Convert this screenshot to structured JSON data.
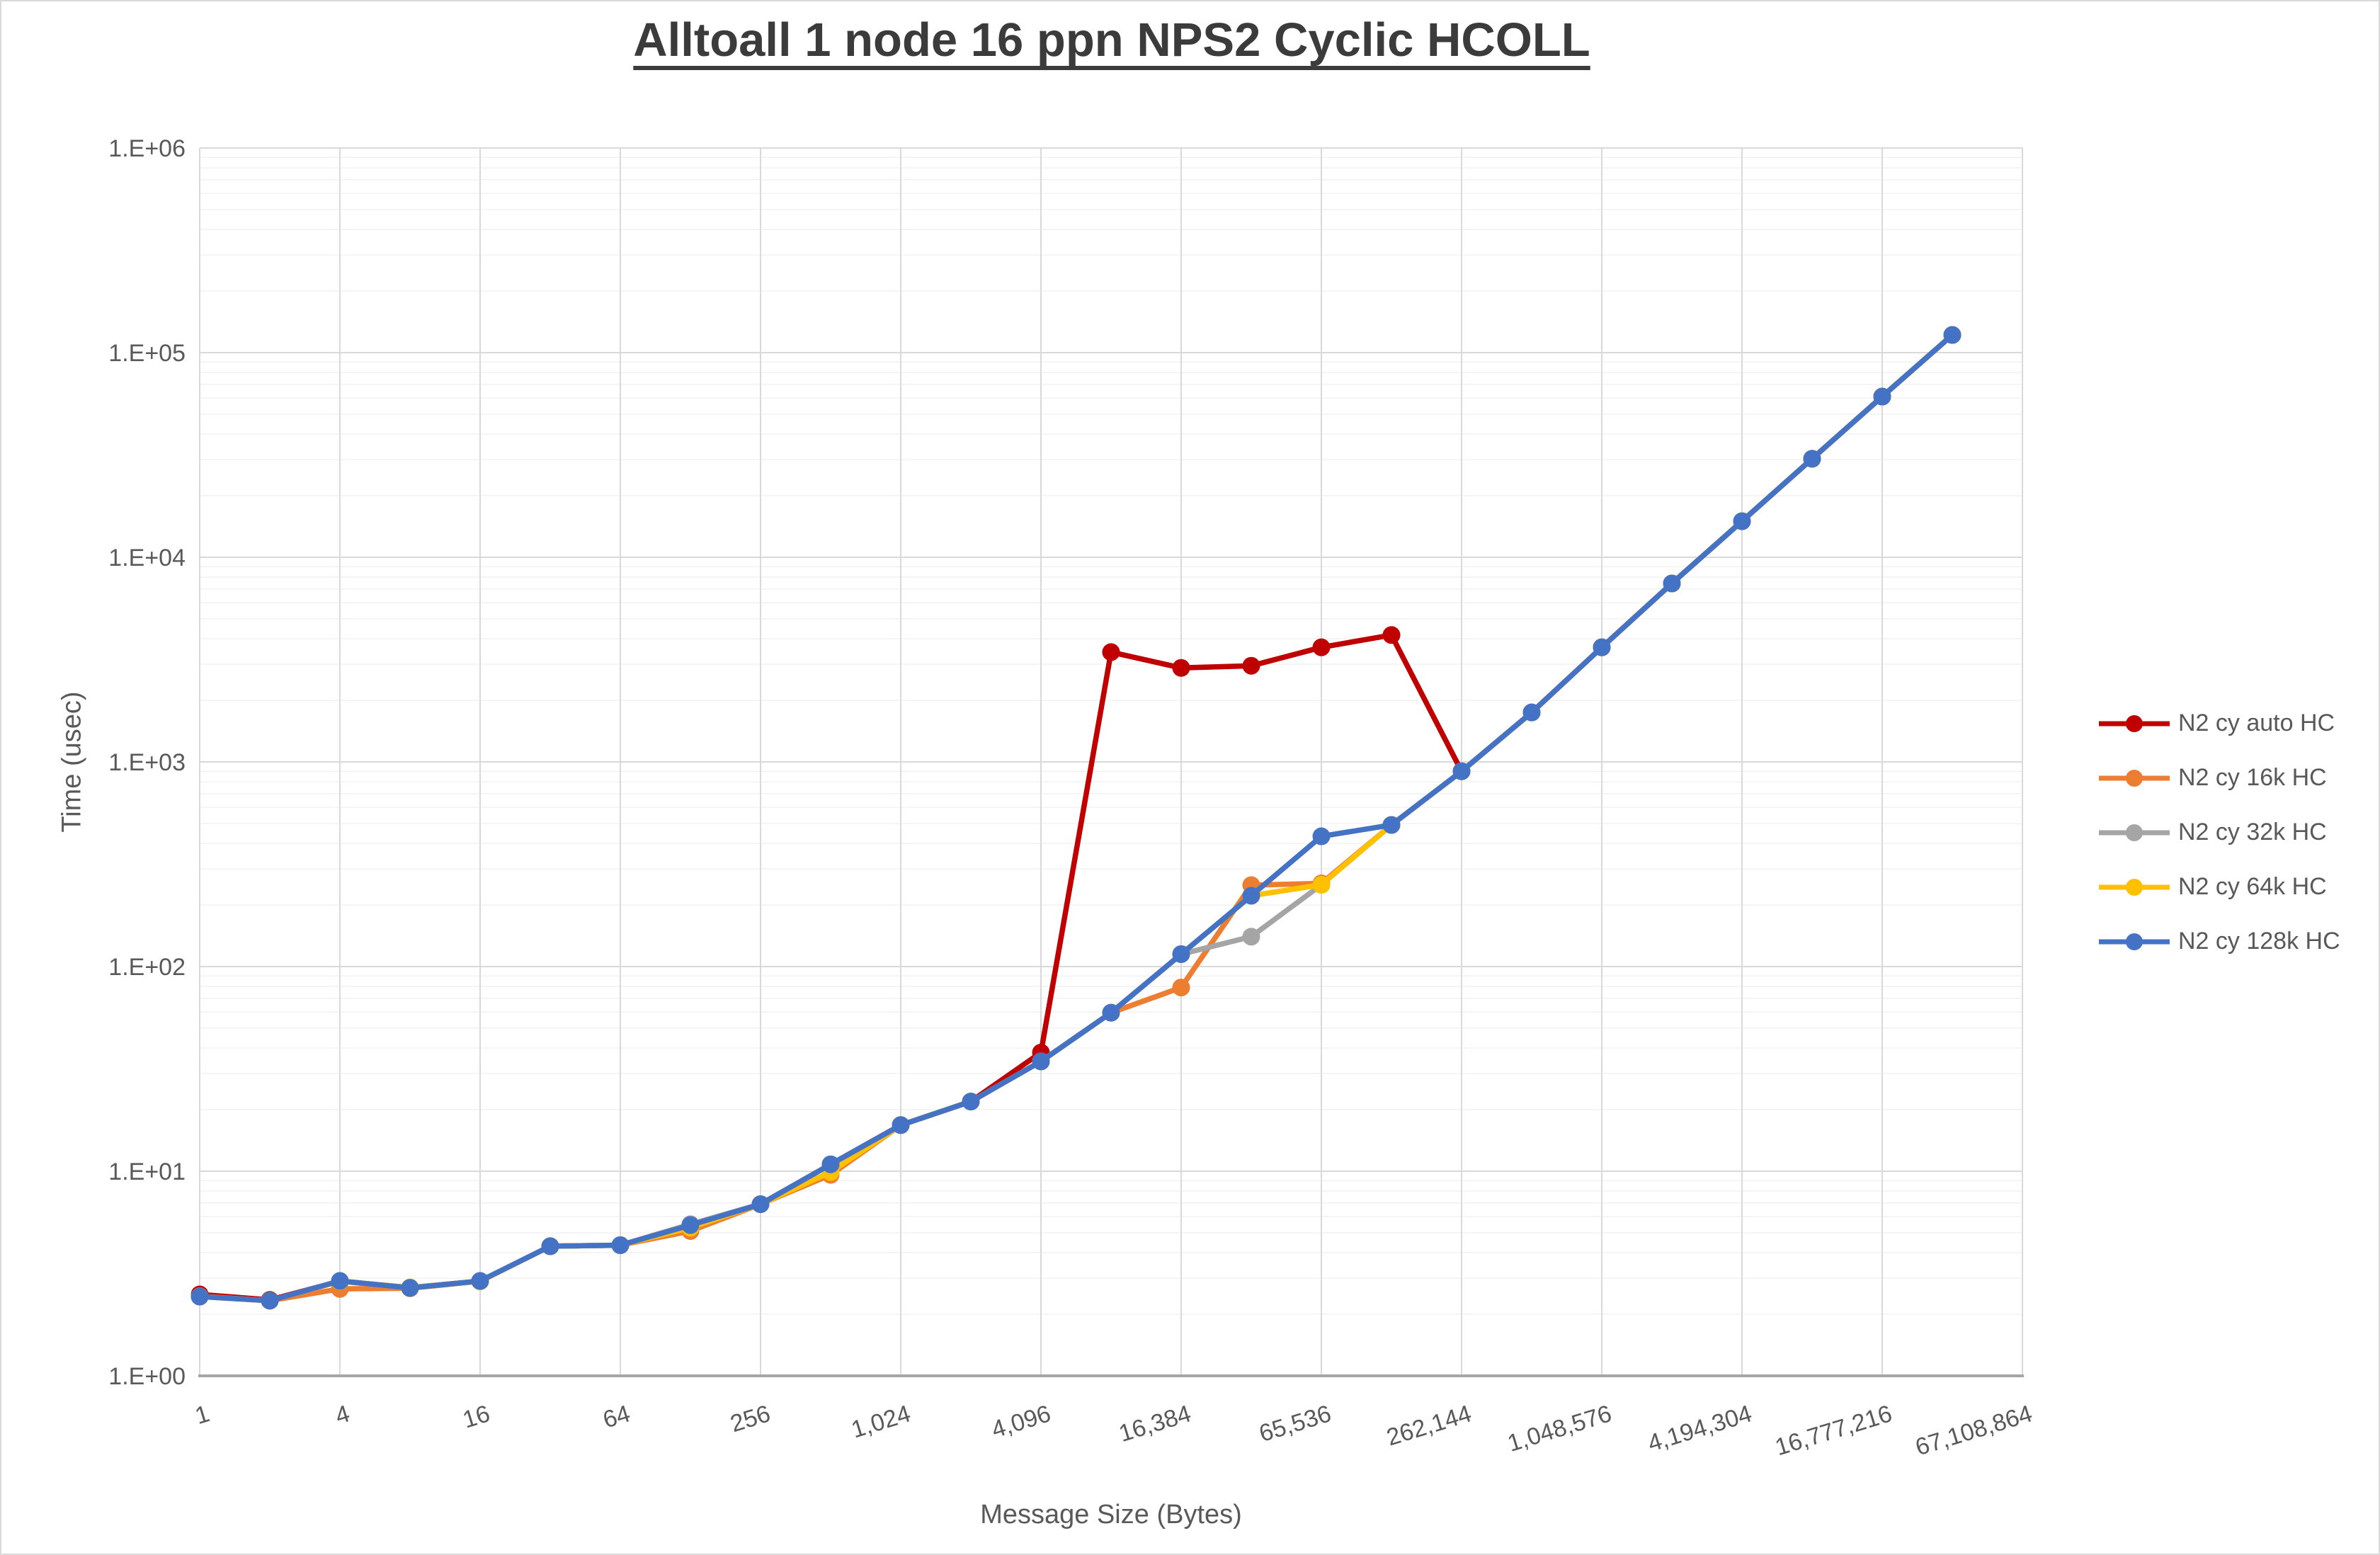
{
  "chart_data": {
    "type": "line",
    "title": "Alltoall 1 node 16 ppn NPS2 Cyclic HCOLL",
    "xlabel": "Message Size (Bytes)",
    "ylabel": "Time (usec)",
    "x_scale": "log2-categorical",
    "y_scale": "log10",
    "ylim": [
      1,
      1000000
    ],
    "grid": "x-major, y-major, y-minor",
    "legend_position": "right",
    "y_tick_labels": [
      "1.E+00",
      "1.E+01",
      "1.E+02",
      "1.E+03",
      "1.E+04",
      "1.E+05",
      "1.E+06"
    ],
    "x_tick_labels": [
      "1",
      "4",
      "16",
      "64",
      "256",
      "1,024",
      "4,096",
      "16,384",
      "65,536",
      "262,144",
      "1,048,576",
      "4,194,304",
      "16,777,216",
      "67,108,864"
    ],
    "categories": [
      1,
      2,
      4,
      8,
      16,
      32,
      64,
      128,
      256,
      512,
      1024,
      2048,
      4096,
      8192,
      16384,
      32768,
      65536,
      131072,
      262144,
      524288,
      1048576,
      2097152,
      4194304,
      8388608,
      16777216,
      33554432
    ],
    "series": [
      {
        "name": "N2 cy auto HC",
        "color": "#C00000",
        "values": [
          2.5,
          2.35,
          2.9,
          2.7,
          2.9,
          4.3,
          4.35,
          5.5,
          6.9,
          10.8,
          16.8,
          21.9,
          38,
          3440,
          2880,
          2950,
          3630,
          4170,
          900,
          1745,
          3630,
          7450,
          15000,
          30300,
          61000,
          122000
        ]
      },
      {
        "name": "N2 cy 16k HC",
        "color": "#ED7D31",
        "values": [
          2.45,
          2.33,
          2.66,
          2.68,
          2.9,
          4.3,
          4.35,
          5.1,
          6.9,
          9.6,
          16.8,
          21.9,
          34.4,
          59.5,
          79,
          250,
          255,
          492,
          900,
          1745,
          3630,
          7450,
          15000,
          30300,
          61000,
          122000
        ]
      },
      {
        "name": "N2 cy 32k HC",
        "color": "#A5A5A5",
        "values": [
          2.44,
          2.33,
          2.9,
          2.7,
          2.9,
          4.3,
          4.35,
          5.5,
          6.9,
          10.8,
          16.8,
          21.9,
          34.4,
          59.5,
          115,
          140,
          251,
          492,
          900,
          1745,
          3630,
          7450,
          15000,
          30300,
          61000,
          122000
        ]
      },
      {
        "name": "N2 cy 64k HC",
        "color": "#FFC000",
        "values": [
          2.44,
          2.33,
          2.9,
          2.7,
          2.9,
          4.3,
          4.35,
          5.3,
          6.9,
          9.9,
          16.8,
          21.9,
          34.4,
          59.5,
          115,
          222,
          251,
          492,
          900,
          1745,
          3630,
          7450,
          15000,
          30300,
          61000,
          122000
        ]
      },
      {
        "name": "N2 cy 128k HC",
        "color": "#4472C4",
        "values": [
          2.44,
          2.33,
          2.91,
          2.69,
          2.91,
          4.3,
          4.35,
          5.45,
          6.9,
          10.8,
          16.8,
          21.9,
          34.4,
          59.5,
          115,
          222,
          433,
          492,
          900,
          1745,
          3630,
          7450,
          15000,
          30300,
          61000,
          122000
        ]
      }
    ],
    "style": {
      "major_grid_color": "#d9d9d9",
      "minor_grid_color": "#f2f2f2",
      "axis_line_color": "#a6a6a6",
      "tick_text_color": "#595959",
      "line_width": 7.5,
      "marker_radius": 12.5
    }
  }
}
